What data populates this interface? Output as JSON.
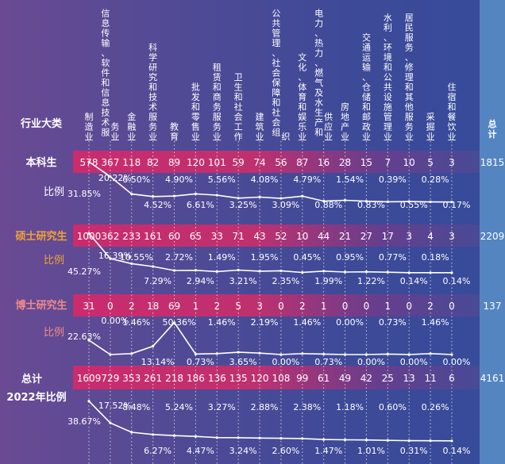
{
  "chart_data": {
    "type": "table",
    "title": "",
    "header_label": "行业大类",
    "total_col_label": "总计",
    "categories": [
      "制造业",
      "信息传输、软件和信息技术服务业",
      "金融业",
      "科学研究和技术服务业",
      "教育",
      "批发和零售业",
      "租赁和商务服务业",
      "卫生和社会工作",
      "建筑业",
      "公共管理、社会保障和社会组织",
      "文化、体育和娱乐业",
      "电力、热力、燃气及水生产和供应业",
      "房地产业",
      "交通运输、仓储和邮政业",
      "水利、环境和公共设施管理业",
      "居民服务、修理和其他服务业",
      "采掘业",
      "住宿和餐饮业"
    ],
    "series": [
      {
        "name": "本科生",
        "ratio_label": "比例",
        "values": [
          578,
          367,
          118,
          82,
          89,
          120,
          101,
          59,
          74,
          56,
          87,
          16,
          28,
          15,
          7,
          10,
          5,
          3
        ],
        "total": 1815,
        "pct": [
          "31.85%",
          "20.22%",
          "6.50%",
          "4.52%",
          "4.90%",
          "6.61%",
          "5.56%",
          "3.25%",
          "4.08%",
          "3.09%",
          "4.79%",
          "0.88%",
          "1.54%",
          "0.83%",
          "0.39%",
          "0.55%",
          "0.28%",
          "0.17%"
        ],
        "pct_values": [
          31.85,
          20.22,
          6.5,
          4.52,
          4.9,
          6.61,
          5.56,
          3.25,
          4.08,
          3.09,
          4.79,
          0.88,
          1.54,
          0.83,
          0.39,
          0.55,
          0.28,
          0.17
        ]
      },
      {
        "name": "硕士研究生",
        "ratio_label": "比例",
        "values": [
          1000,
          362,
          233,
          161,
          60,
          65,
          33,
          71,
          43,
          52,
          10,
          44,
          21,
          27,
          17,
          3,
          4,
          3
        ],
        "total": 2209,
        "pct": [
          "45.27%",
          "16.39%",
          "10.55%",
          "7.29%",
          "2.72%",
          "2.94%",
          "1.49%",
          "3.21%",
          "1.95%",
          "2.35%",
          "0.45%",
          "1.99%",
          "0.95%",
          "1.22%",
          "0.77%",
          "0.14%",
          "0.18%",
          "0.14%"
        ],
        "pct_values": [
          45.27,
          16.39,
          10.55,
          7.29,
          2.72,
          2.94,
          1.49,
          3.21,
          1.95,
          2.35,
          0.45,
          1.99,
          0.95,
          1.22,
          0.77,
          0.14,
          0.18,
          0.14
        ]
      },
      {
        "name": "博士研究生",
        "ratio_label": "比例",
        "values": [
          31,
          0,
          2,
          18,
          69,
          1,
          2,
          5,
          3,
          0,
          2,
          1,
          0,
          0,
          1,
          0,
          2,
          0
        ],
        "total": 137,
        "pct": [
          "22.63%",
          "0.00%",
          "1.46%",
          "13.14%",
          "50.36%",
          "0.73%",
          "1.46%",
          "3.65%",
          "2.19%",
          "0.00%",
          "1.46%",
          "0.73%",
          "0.00%",
          "0.00%",
          "0.73%",
          "0.00%",
          "1.46%",
          "0.00%"
        ],
        "pct_values": [
          22.63,
          0.0,
          1.46,
          13.14,
          50.36,
          0.73,
          1.46,
          3.65,
          2.19,
          0.0,
          1.46,
          0.73,
          0.0,
          0.0,
          0.73,
          0.0,
          1.46,
          0.0
        ]
      },
      {
        "name": "总计",
        "ratio_label": "2022年比例",
        "values": [
          1609,
          729,
          353,
          261,
          218,
          186,
          136,
          135,
          120,
          108,
          99,
          61,
          49,
          42,
          25,
          13,
          11,
          6
        ],
        "total": 4161,
        "pct": [
          "38.67%",
          "17.52%",
          "8.48%",
          "6.27%",
          "5.24%",
          "4.47%",
          "3.27%",
          "3.24%",
          "2.88%",
          "2.60%",
          "2.38%",
          "1.47%",
          "1.18%",
          "1.01%",
          "0.60%",
          "0.31%",
          "0.26%",
          "0.14%"
        ],
        "pct_values": [
          38.67,
          17.52,
          8.48,
          6.27,
          5.24,
          4.47,
          3.27,
          3.24,
          2.88,
          2.6,
          2.38,
          1.47,
          1.18,
          1.01,
          0.6,
          0.31,
          0.26,
          0.14
        ]
      }
    ],
    "colors": {
      "bg_left": "#6a4a93",
      "bg_right": "#364b9b",
      "band_pink": "#d3296a",
      "band_right": "#4a4a95",
      "accent_orange": "#f0a23a",
      "accent_salmon": "#f08a8a",
      "line": "#ffffff",
      "text": "#ffffff",
      "right_strip": "#5a8fc8"
    }
  }
}
